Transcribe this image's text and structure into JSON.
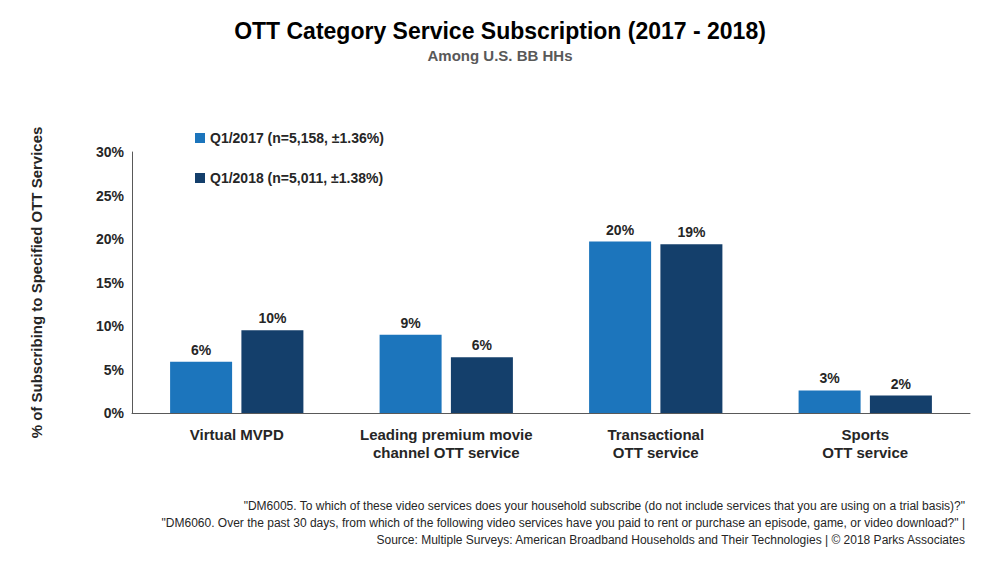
{
  "chart_data": {
    "type": "bar",
    "title": "OTT Category Service Subscription (2017 - 2018)",
    "subtitle": "Among U.S. BB HHs",
    "y_label": "% of Subscribing to Specified OTT Services",
    "categories": [
      "Virtual MVPD",
      "Leading premium movie\nchannel OTT service",
      "Transactional\nOTT service",
      "Sports\nOTT service"
    ],
    "series": [
      {
        "name": "Q1/2017 (n=5,158, ±1.36%)",
        "color": "#1c75bc",
        "values": [
          5.9,
          9,
          19.7,
          2.6
        ],
        "value_labels": [
          "6%",
          "9%",
          "20%",
          "3%"
        ]
      },
      {
        "name": "Q1/2018 (n=5,011, ±1.38%)",
        "color": "#143f6b",
        "values": [
          9.5,
          6.4,
          19.4,
          2
        ],
        "value_labels": [
          "10%",
          "6%",
          "19%",
          "2%"
        ]
      }
    ],
    "ylim": [
      0,
      30
    ],
    "yticks": [
      {
        "value": 0,
        "label": "0%"
      },
      {
        "value": 5,
        "label": "5%"
      },
      {
        "value": 10,
        "label": "10%"
      },
      {
        "value": 15,
        "label": "15%"
      },
      {
        "value": 20,
        "label": "20%"
      },
      {
        "value": 25,
        "label": "25%"
      },
      {
        "value": 30,
        "label": "30%"
      }
    ],
    "grid": false,
    "legend": "top-left",
    "data_labels": true,
    "annotations": [
      "\"DM6005. To which of these video services does your household subscribe (do not include services that you are using on a trial basis)?\"",
      "\"DM6060. Over the past 30 days, from which of the following video services have you paid to rent or purchase an episode, game, or video download?\" |",
      "Source: Multiple Surveys: American Broadband Households and Their Technologies | © 2018 Parks Associates"
    ]
  }
}
